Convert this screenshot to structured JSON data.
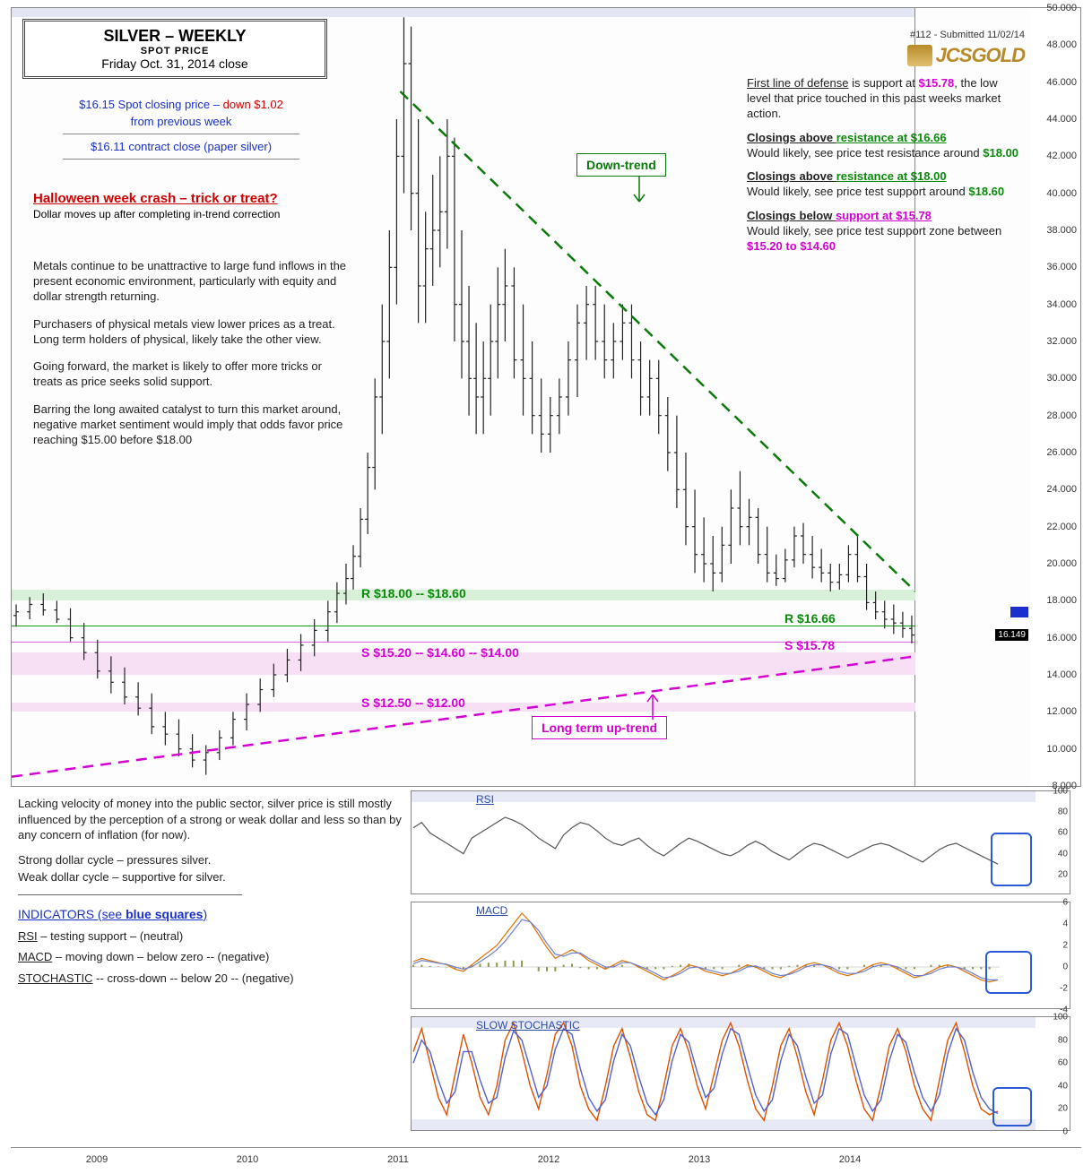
{
  "title": {
    "line1": "SILVER – WEEKLY",
    "line2": "SPOT PRICE",
    "line3": "Friday Oct. 31, 2014 close"
  },
  "submitted": "#112 - Submitted 11/02/14",
  "logo_text": "JCSGOLD",
  "spot": {
    "line1a": "$16.15 Spot closing price – ",
    "line1b": "down $1.02",
    "line2": "from previous week",
    "line3": "$16.11 contract close (paper silver)"
  },
  "headline": "Halloween week crash – trick or treat?",
  "headline_sub": "Dollar moves up after completing in-trend correction",
  "commentary": [
    "Metals continue to be unattractive to large fund inflows in the present economic environment, particularly with equity and dollar strength returning.",
    "Purchasers of physical metals view lower prices as a treat. Long term holders of physical, likely take the other view.",
    "Going forward, the market is likely to offer more tricks or treats as price seeks solid support.",
    "Barring the long awaited catalyst to turn this market around, negative market sentiment would imply that odds favor price reaching  $15.00 before  $18.00"
  ],
  "right": {
    "defense_a": "First line of defense",
    "defense_b": " is support at ",
    "defense_price": "$15.78",
    "defense_c": ", the low level that price touched in this past weeks market action.",
    "b1_head_a": "Closings above ",
    "b1_head_b": "resistance at $16.66",
    "b1_body_a": "Would likely, see price test resistance around ",
    "b1_body_b": "$18.00",
    "b2_head_a": "Closings above ",
    "b2_head_b": "resistance at $18.00",
    "b2_body_a": "Would likely, see price test support around  ",
    "b2_body_b": "$18.60",
    "b3_head_a": "Closings below ",
    "b3_head_b": "support at $15.78",
    "b3_body_a": "Would likely, see price test support zone between  ",
    "b3_body_b": "$15.20  to $14.60"
  },
  "trend_down": "Down-trend",
  "trend_up": "Long term up-trend",
  "sr_labels": {
    "r18": "R $18.00 -- $18.60",
    "r1666": "R $16.66",
    "s1578": "S $15.78",
    "s15": "S $15.20 -- $14.60 -- $14.00",
    "s12": "S $12.50 -- $12.00"
  },
  "price_last": "16.149",
  "chart": {
    "y_min": 8.0,
    "y_max": 50.0,
    "y_ticks": [
      8,
      10,
      12,
      14,
      16,
      18,
      20,
      22,
      24,
      26,
      28,
      30,
      32,
      34,
      36,
      38,
      40,
      42,
      44,
      46,
      48,
      50
    ],
    "x_years": [
      "2009",
      "2010",
      "2011",
      "2012",
      "2013",
      "2014"
    ],
    "sr_zones": [
      {
        "low": 18.0,
        "high": 18.6,
        "color": "#d8f0d8",
        "line": null
      },
      {
        "low": 16.66,
        "high": 16.66,
        "color": null,
        "line": "#0aa00a"
      },
      {
        "low": 15.78,
        "high": 15.78,
        "color": null,
        "line": "#e060e0"
      },
      {
        "low": 14.0,
        "high": 15.2,
        "color": "#f8e0f4",
        "line": null
      },
      {
        "low": 12.0,
        "high": 12.5,
        "color": "#f8e0f4",
        "line": null
      }
    ],
    "down_trend_line": {
      "x1": 0.43,
      "y1": 45.5,
      "x2": 1.0,
      "y2": 18.5,
      "color": "#0a7a0a"
    },
    "up_trend_line": {
      "x1": 0.0,
      "y1": 8.5,
      "x2": 1.0,
      "y2": 15.0,
      "color": "#d400d4"
    },
    "ohlc": [
      [
        0.005,
        17.2,
        17.8,
        16.6,
        17.4
      ],
      [
        0.02,
        17.4,
        18.2,
        17.0,
        17.8
      ],
      [
        0.035,
        17.8,
        18.4,
        17.2,
        17.5
      ],
      [
        0.05,
        17.5,
        18.0,
        16.8,
        17.0
      ],
      [
        0.065,
        17.0,
        17.6,
        15.8,
        16.0
      ],
      [
        0.08,
        16.0,
        16.8,
        14.8,
        15.2
      ],
      [
        0.095,
        15.2,
        15.9,
        13.8,
        14.2
      ],
      [
        0.11,
        14.2,
        15.0,
        13.0,
        13.6
      ],
      [
        0.125,
        13.6,
        14.4,
        12.4,
        12.8
      ],
      [
        0.14,
        12.8,
        13.6,
        11.8,
        12.2
      ],
      [
        0.155,
        12.2,
        13.0,
        10.8,
        11.2
      ],
      [
        0.17,
        11.2,
        12.0,
        10.2,
        10.8
      ],
      [
        0.185,
        10.8,
        11.6,
        9.6,
        10.0
      ],
      [
        0.2,
        10.0,
        10.8,
        9.0,
        9.4
      ],
      [
        0.215,
        9.4,
        10.2,
        8.6,
        9.8
      ],
      [
        0.23,
        9.8,
        11.0,
        9.4,
        10.6
      ],
      [
        0.245,
        10.6,
        12.0,
        10.2,
        11.6
      ],
      [
        0.26,
        11.6,
        13.0,
        11.0,
        12.4
      ],
      [
        0.275,
        12.4,
        13.8,
        12.0,
        13.2
      ],
      [
        0.29,
        13.2,
        14.6,
        12.8,
        14.0
      ],
      [
        0.305,
        14.0,
        15.4,
        13.6,
        14.8
      ],
      [
        0.32,
        14.8,
        16.2,
        14.2,
        15.6
      ],
      [
        0.335,
        15.6,
        17.0,
        15.0,
        16.4
      ],
      [
        0.35,
        16.4,
        18.0,
        15.8,
        17.4
      ],
      [
        0.36,
        17.4,
        19.0,
        16.8,
        18.4
      ],
      [
        0.37,
        18.4,
        20.0,
        17.8,
        19.2
      ],
      [
        0.378,
        19.2,
        21.0,
        18.6,
        20.4
      ],
      [
        0.386,
        20.4,
        23.0,
        19.8,
        22.4
      ],
      [
        0.394,
        22.4,
        26.0,
        21.6,
        25.2
      ],
      [
        0.402,
        25.2,
        30.0,
        24.0,
        29.0
      ],
      [
        0.41,
        29.0,
        34.0,
        27.0,
        32.0
      ],
      [
        0.418,
        32.0,
        38.0,
        30.0,
        36.0
      ],
      [
        0.426,
        36.0,
        44.0,
        34.0,
        42.0
      ],
      [
        0.434,
        42.0,
        49.5,
        40.0,
        47.0
      ],
      [
        0.442,
        47.0,
        49.0,
        38.0,
        40.0
      ],
      [
        0.45,
        40.0,
        44.0,
        33.0,
        35.0
      ],
      [
        0.458,
        35.0,
        39.0,
        33.0,
        37.0
      ],
      [
        0.466,
        37.0,
        41.0,
        35.0,
        38.0
      ],
      [
        0.474,
        38.0,
        42.0,
        36.0,
        39.0
      ],
      [
        0.482,
        39.0,
        44.0,
        37.0,
        42.0
      ],
      [
        0.49,
        42.0,
        43.0,
        32.0,
        34.0
      ],
      [
        0.498,
        34.0,
        38.0,
        30.0,
        32.0
      ],
      [
        0.506,
        32.0,
        35.0,
        28.0,
        30.0
      ],
      [
        0.514,
        30.0,
        33.0,
        27.0,
        29.0
      ],
      [
        0.522,
        29.0,
        32.0,
        27.0,
        30.0
      ],
      [
        0.53,
        30.0,
        34.0,
        28.0,
        32.0
      ],
      [
        0.538,
        32.0,
        36.0,
        30.0,
        34.0
      ],
      [
        0.546,
        34.0,
        37.0,
        32.0,
        35.0
      ],
      [
        0.556,
        35.0,
        36.0,
        30.0,
        31.0
      ],
      [
        0.566,
        31.0,
        34.0,
        28.0,
        30.0
      ],
      [
        0.576,
        30.0,
        32.0,
        27.0,
        28.0
      ],
      [
        0.586,
        28.0,
        30.0,
        26.0,
        27.0
      ],
      [
        0.596,
        27.0,
        29.0,
        26.0,
        28.0
      ],
      [
        0.606,
        28.0,
        30.0,
        27.0,
        29.0
      ],
      [
        0.616,
        29.0,
        32.0,
        28.0,
        31.0
      ],
      [
        0.626,
        31.0,
        34.0,
        29.0,
        33.0
      ],
      [
        0.636,
        33.0,
        35.0,
        31.0,
        34.0
      ],
      [
        0.646,
        34.0,
        35.0,
        31.0,
        32.0
      ],
      [
        0.656,
        32.0,
        34.0,
        30.0,
        31.0
      ],
      [
        0.666,
        31.0,
        33.0,
        30.0,
        32.0
      ],
      [
        0.676,
        32.0,
        34.0,
        31.0,
        33.0
      ],
      [
        0.686,
        33.0,
        34.0,
        30.0,
        31.0
      ],
      [
        0.696,
        31.0,
        32.0,
        28.0,
        29.0
      ],
      [
        0.706,
        29.0,
        31.0,
        28.0,
        30.0
      ],
      [
        0.716,
        30.0,
        31.0,
        27.0,
        28.0
      ],
      [
        0.726,
        28.0,
        29.0,
        25.0,
        26.0
      ],
      [
        0.736,
        26.0,
        28.0,
        23.0,
        24.0
      ],
      [
        0.746,
        24.0,
        26.0,
        21.0,
        22.0
      ],
      [
        0.756,
        22.0,
        24.0,
        19.5,
        20.5
      ],
      [
        0.766,
        20.5,
        22.5,
        19.0,
        20.0
      ],
      [
        0.776,
        20.0,
        21.5,
        18.5,
        19.5
      ],
      [
        0.786,
        19.5,
        22.0,
        19.0,
        21.0
      ],
      [
        0.796,
        21.0,
        24.0,
        20.0,
        23.0
      ],
      [
        0.806,
        23.0,
        25.0,
        21.0,
        22.0
      ],
      [
        0.816,
        22.0,
        23.5,
        21.0,
        22.5
      ],
      [
        0.826,
        22.5,
        23.0,
        20.0,
        20.5
      ],
      [
        0.836,
        20.5,
        22.0,
        19.0,
        19.5
      ],
      [
        0.846,
        19.5,
        20.5,
        18.8,
        19.2
      ],
      [
        0.856,
        19.2,
        20.8,
        19.0,
        20.2
      ],
      [
        0.866,
        20.2,
        22.0,
        19.8,
        21.5
      ],
      [
        0.876,
        21.5,
        22.2,
        20.0,
        20.5
      ],
      [
        0.886,
        20.5,
        21.5,
        19.2,
        19.8
      ],
      [
        0.896,
        19.8,
        20.8,
        19.0,
        19.5
      ],
      [
        0.906,
        19.5,
        20.0,
        18.5,
        19.0
      ],
      [
        0.916,
        19.0,
        20.0,
        18.6,
        19.4
      ],
      [
        0.926,
        19.4,
        21.0,
        19.0,
        20.5
      ],
      [
        0.936,
        20.5,
        21.5,
        19.0,
        19.3
      ],
      [
        0.946,
        19.3,
        20.0,
        17.5,
        17.9
      ],
      [
        0.956,
        17.9,
        18.5,
        17.0,
        17.4
      ],
      [
        0.966,
        17.4,
        18.0,
        16.5,
        17.0
      ],
      [
        0.976,
        17.0,
        17.8,
        16.2,
        16.8
      ],
      [
        0.986,
        16.8,
        17.4,
        16.0,
        16.5
      ],
      [
        0.996,
        16.5,
        17.2,
        15.7,
        16.15
      ]
    ]
  },
  "lower_text": {
    "p1": "Lacking velocity of money into the public sector, silver price is still mostly influenced by the perception of a strong or weak dollar and less so than by any concern of inflation (for now).",
    "p2": "Strong dollar cycle – pressures silver.",
    "p3": "Weak dollar cycle – supportive for silver.",
    "ind_head_a": "INDICATORS (see ",
    "ind_head_b": "blue squares",
    "ind_head_c": ")",
    "rsi": "RSI",
    "rsi_s": " – testing support –  (neutral)",
    "macd": "MACD",
    "macd_s": "  – moving down – below zero --  (negative)",
    "stoch": "STOCHASTIC",
    "stoch_s": "  -- cross-down -- below 20 --  (negative)"
  },
  "indicators": {
    "rsi": {
      "label": "RSI",
      "y_min": 0,
      "y_max": 100,
      "y_ticks": [
        20,
        40,
        60,
        80,
        100
      ],
      "values": [
        65,
        70,
        60,
        55,
        50,
        45,
        40,
        55,
        60,
        65,
        70,
        75,
        72,
        68,
        62,
        55,
        50,
        45,
        58,
        65,
        70,
        68,
        62,
        55,
        50,
        48,
        52,
        55,
        48,
        42,
        38,
        44,
        50,
        55,
        52,
        48,
        44,
        40,
        38,
        42,
        48,
        52,
        48,
        42,
        38,
        34,
        40,
        46,
        50,
        48,
        44,
        40,
        36,
        40,
        44,
        48,
        50,
        48,
        44,
        40,
        36,
        32,
        38,
        44,
        48,
        50,
        46,
        42,
        38,
        34,
        30
      ],
      "color": "#555"
    },
    "macd": {
      "label": "MACD",
      "y_min": -4,
      "y_max": 6,
      "y_ticks": [
        -4,
        -2,
        0,
        2,
        4,
        6
      ],
      "line1": [
        0.5,
        0.8,
        0.6,
        0.4,
        0.2,
        -0.2,
        -0.4,
        0.2,
        0.8,
        1.4,
        2.0,
        3.0,
        4.0,
        5.0,
        4.2,
        3.0,
        1.8,
        0.8,
        1.2,
        1.6,
        1.2,
        0.6,
        0.2,
        -0.2,
        0.2,
        0.6,
        0.4,
        0,
        -0.4,
        -0.8,
        -1.2,
        -0.8,
        -0.4,
        0.2,
        0,
        -0.4,
        -0.6,
        -0.8,
        -0.6,
        -0.2,
        0.2,
        0,
        -0.4,
        -0.8,
        -1.0,
        -0.6,
        -0.2,
        0.2,
        0.4,
        0.2,
        -0.2,
        -0.6,
        -0.8,
        -0.6,
        -0.2,
        0.2,
        0.4,
        0.2,
        -0.2,
        -0.6,
        -1.0,
        -0.8,
        -0.4,
        0.0,
        0.2,
        0,
        -0.4,
        -0.8,
        -1.2,
        -1.4,
        -1.2
      ],
      "line2": [
        0.3,
        0.6,
        0.5,
        0.35,
        0.25,
        0.0,
        -0.2,
        0.0,
        0.5,
        1.0,
        1.6,
        2.4,
        3.4,
        4.4,
        4.2,
        3.4,
        2.2,
        1.2,
        1.0,
        1.3,
        1.3,
        0.8,
        0.4,
        0.0,
        0.0,
        0.4,
        0.4,
        0.1,
        -0.2,
        -0.6,
        -1.0,
        -0.9,
        -0.6,
        -0.1,
        0.0,
        -0.2,
        -0.4,
        -0.6,
        -0.6,
        -0.4,
        0.0,
        0.1,
        -0.2,
        -0.6,
        -0.8,
        -0.7,
        -0.4,
        0.0,
        0.2,
        0.2,
        0.0,
        -0.4,
        -0.6,
        -0.6,
        -0.4,
        0.0,
        0.2,
        0.2,
        0.0,
        -0.4,
        -0.8,
        -0.8,
        -0.6,
        -0.2,
        0.0,
        0.0,
        -0.2,
        -0.6,
        -1.0,
        -1.2,
        -1.2
      ],
      "hist_color": "#8a9a4a",
      "c1": "#e07000",
      "c2": "#7080d0"
    },
    "stoch": {
      "label": "SLOW STOCHASTIC",
      "y_min": 0,
      "y_max": 100,
      "y_ticks": [
        0,
        20,
        40,
        60,
        80,
        100
      ],
      "k": [
        70,
        90,
        60,
        30,
        15,
        50,
        85,
        60,
        30,
        15,
        40,
        80,
        95,
        70,
        40,
        20,
        50,
        85,
        95,
        75,
        40,
        20,
        10,
        40,
        75,
        90,
        65,
        35,
        15,
        10,
        40,
        75,
        90,
        70,
        40,
        20,
        50,
        80,
        95,
        75,
        45,
        20,
        10,
        40,
        75,
        90,
        65,
        35,
        15,
        45,
        80,
        95,
        75,
        45,
        20,
        10,
        40,
        75,
        90,
        70,
        40,
        20,
        10,
        45,
        80,
        95,
        70,
        40,
        20,
        15,
        18
      ],
      "d": [
        60,
        80,
        70,
        45,
        25,
        35,
        70,
        70,
        45,
        25,
        30,
        65,
        88,
        80,
        55,
        30,
        40,
        72,
        90,
        85,
        55,
        30,
        18,
        28,
        62,
        85,
        75,
        48,
        25,
        15,
        28,
        62,
        85,
        78,
        52,
        30,
        38,
        68,
        90,
        85,
        58,
        32,
        18,
        28,
        62,
        85,
        75,
        48,
        25,
        32,
        68,
        90,
        85,
        58,
        32,
        18,
        28,
        62,
        85,
        78,
        52,
        30,
        18,
        32,
        68,
        90,
        80,
        52,
        30,
        20,
        16
      ],
      "c1": "#e05000",
      "c2": "#5060d0"
    }
  },
  "colors": {
    "green": "#0a8a0a",
    "magenta": "#d400d4",
    "blue": "#1a2fcb",
    "red": "#d00000"
  }
}
